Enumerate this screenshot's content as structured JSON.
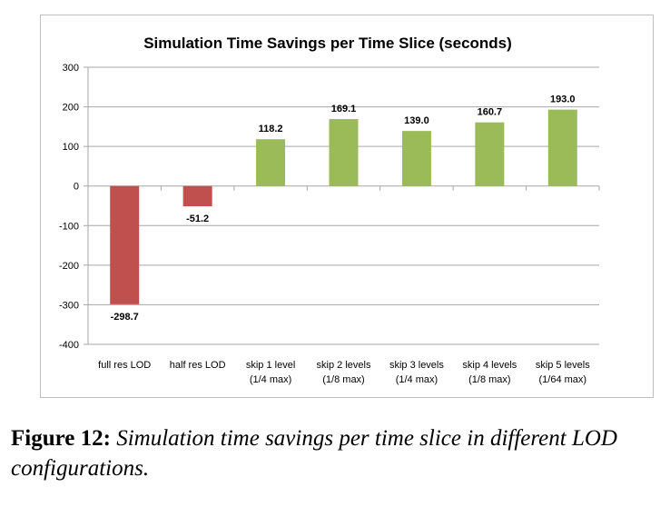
{
  "chart_data": {
    "type": "bar",
    "title": "Simulation Time Savings per Time Slice (seconds)",
    "xlabel": "",
    "ylabel": "",
    "categories": [
      [
        "full res LOD"
      ],
      [
        "half res LOD"
      ],
      [
        "skip 1 level",
        "(1/4 max)"
      ],
      [
        "skip 2 levels",
        "(1/8 max)"
      ],
      [
        "skip 3 levels",
        "(1/4 max)"
      ],
      [
        "skip 4 levels",
        "(1/8 max)"
      ],
      [
        "skip 5 levels",
        "(1/64 max)"
      ]
    ],
    "values": [
      -298.7,
      -51.2,
      118.2,
      169.1,
      139.0,
      160.7,
      193.0
    ],
    "data_labels": [
      "-298.7",
      "-51.2",
      "118.2",
      "169.1",
      "139.0",
      "160.7",
      "193.0"
    ],
    "ylim": [
      -400,
      300
    ],
    "yticks": [
      300,
      200,
      100,
      0,
      -100,
      -200,
      -300,
      -400
    ],
    "grid": true,
    "legend": "none",
    "colors": {
      "positive": "#9bbb59",
      "negative": "#c0504d"
    }
  },
  "caption": {
    "label": "Figure 12:",
    "text": "Simulation time savings per time slice in different LOD configurations."
  }
}
